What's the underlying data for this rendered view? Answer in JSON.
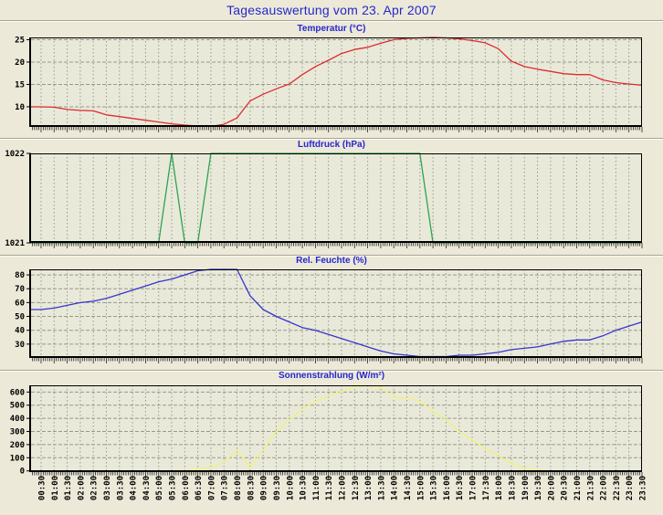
{
  "page": {
    "title": "Tagesauswertung vom 23. Apr 2007"
  },
  "colors": {
    "background": "#ece9d8",
    "plot_background": "#e9e9da",
    "grid": "#98988e",
    "axis": "#000000",
    "heading_blue": "#2626cd",
    "temperature_line": "#dd2c2c",
    "pressure_line": "#2ea352",
    "humidity_line": "#3535cf",
    "radiation_line": "#f0f07c"
  },
  "x_axis": {
    "domain": [
      0.1167,
      23.5
    ],
    "start_hours": 0.5,
    "step_hours": 0.5,
    "labels": [
      "00:30",
      "01:00",
      "01:30",
      "02:00",
      "02:30",
      "03:00",
      "03:30",
      "04:00",
      "04:30",
      "05:00",
      "05:30",
      "06:00",
      "06:30",
      "07:00",
      "07:30",
      "08:00",
      "08:30",
      "09:00",
      "09:30",
      "10:00",
      "10:30",
      "11:00",
      "11:30",
      "12:00",
      "12:30",
      "13:00",
      "13:30",
      "14:00",
      "14:30",
      "15:00",
      "15:30",
      "16:00",
      "16:30",
      "17:00",
      "17:30",
      "18:00",
      "18:30",
      "19:00",
      "19:30",
      "20:00",
      "20:30",
      "21:00",
      "21:30",
      "22:00",
      "22:30",
      "23:00",
      "23:30"
    ]
  },
  "chart_data": [
    {
      "type": "line",
      "name": "temperature",
      "title": "Temperatur (°C)",
      "color": "#dd2c2c",
      "ylim": [
        5.5,
        25.5
      ],
      "yticks": [
        10,
        15,
        20,
        25
      ],
      "grid": true,
      "values": [
        10.0,
        9.9,
        9.4,
        9.2,
        9.1,
        8.2,
        7.8,
        7.4,
        7.0,
        6.6,
        6.2,
        5.9,
        5.7,
        5.6,
        6.1,
        7.5,
        11.3,
        12.8,
        14.0,
        15.1,
        17.2,
        19.0,
        20.4,
        21.9,
        22.8,
        23.3,
        24.2,
        25.0,
        25.3,
        25.4,
        25.5,
        25.4,
        25.2,
        24.8,
        24.3,
        23.0,
        20.2,
        19.0,
        18.4,
        17.9,
        17.4,
        17.2,
        17.2,
        16.0,
        15.4,
        15.1,
        14.8
      ]
    },
    {
      "type": "line",
      "name": "pressure",
      "title": "Luftdruck (hPa)",
      "color": "#2ea352",
      "ylim": [
        1021,
        1022
      ],
      "yticks": [
        1021,
        1022
      ],
      "grid": true,
      "values": [
        1021,
        1021,
        1021,
        1021,
        1021,
        1021,
        1021,
        1021,
        1021,
        1021,
        1022,
        1021,
        1021,
        1022,
        1022,
        1022,
        1022,
        1022,
        1022,
        1022,
        1022,
        1022,
        1022,
        1022,
        1022,
        1022,
        1022,
        1022,
        1022,
        1022,
        1021,
        1021,
        1021,
        1021,
        1021,
        1021,
        1021,
        1021,
        1021,
        1021,
        1021,
        1021,
        1021,
        1021,
        1021,
        1021,
        1021
      ]
    },
    {
      "type": "line",
      "name": "humidity",
      "title": "Rel. Feuchte (%)",
      "color": "#3535cf",
      "ylim": [
        20,
        84
      ],
      "yticks": [
        30,
        40,
        50,
        60,
        70,
        80
      ],
      "grid": true,
      "values": [
        55,
        56,
        58,
        60,
        61,
        63,
        66,
        69,
        72,
        75,
        77,
        80,
        83,
        84,
        84,
        84,
        65,
        55,
        50,
        46,
        42,
        40,
        37,
        34,
        31,
        28,
        25,
        23,
        22,
        21,
        21,
        21,
        22,
        22,
        23,
        24,
        26,
        27,
        28,
        30,
        32,
        33,
        33,
        36,
        40,
        43,
        46
      ]
    },
    {
      "type": "line",
      "name": "radiation",
      "title": "Sonnenstrahlung (W/m²)",
      "color": "#f0f07c",
      "ylim": [
        -9,
        651
      ],
      "yticks": [
        0,
        100,
        200,
        300,
        400,
        500,
        600
      ],
      "grid": true,
      "values": [
        0,
        0,
        0,
        0,
        0,
        0,
        0,
        0,
        0,
        0,
        0,
        3,
        10,
        30,
        65,
        155,
        25,
        160,
        300,
        390,
        470,
        530,
        570,
        600,
        640,
        650,
        635,
        560,
        555,
        530,
        455,
        390,
        300,
        235,
        170,
        115,
        60,
        25,
        5,
        0,
        0,
        0,
        0,
        0,
        0,
        0,
        0
      ]
    }
  ]
}
